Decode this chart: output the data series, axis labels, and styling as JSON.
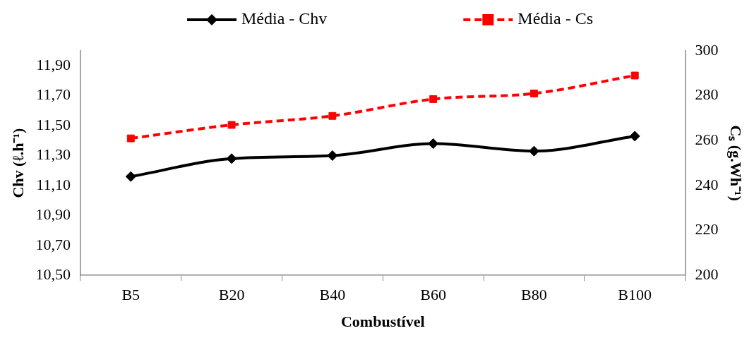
{
  "chart_data": {
    "type": "line",
    "xlabel": "Combustível",
    "ylabel": "Chv (ℓ.h⁻¹)",
    "y2label": "Cₛ (g.Wh⁻¹)",
    "categories": [
      "B5",
      "B20",
      "B40",
      "B60",
      "B80",
      "B100"
    ],
    "series": [
      {
        "name": "Média - Chv",
        "color": "#000000",
        "marker": "diamond",
        "line_style": "solid",
        "values": [
          11.16,
          11.28,
          11.3,
          11.38,
          11.33,
          11.43
        ]
      },
      {
        "name": "Média - Cs",
        "color": "#ff0000",
        "marker": "square",
        "line_style": "dashed",
        "axis": "y2",
        "values": [
          261,
          267,
          271,
          278.5,
          281,
          289
        ]
      }
    ],
    "ylim": [
      10.5,
      12.0
    ],
    "yticks": [
      {
        "value": 10.5,
        "label": "10,50"
      },
      {
        "value": 10.7,
        "label": "10,70"
      },
      {
        "value": 10.9,
        "label": "10,90"
      },
      {
        "value": 11.1,
        "label": "11,10"
      },
      {
        "value": 11.3,
        "label": "11,30"
      },
      {
        "value": 11.5,
        "label": "11,50"
      },
      {
        "value": 11.7,
        "label": "11,70"
      },
      {
        "value": 11.9,
        "label": "11,90"
      }
    ],
    "y2lim": [
      200,
      300
    ],
    "y2ticks": [
      200,
      220,
      240,
      260,
      280,
      300
    ],
    "grid": false,
    "legend": "top"
  }
}
